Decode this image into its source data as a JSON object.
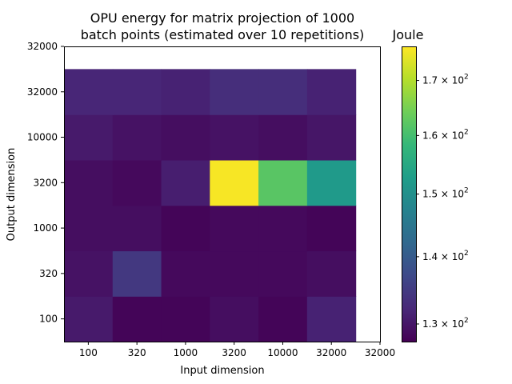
{
  "chart_data": {
    "type": "heatmap",
    "title_lines": [
      "OPU energy for matrix projection of 1000",
      "batch points (estimated over 10 repetitions)"
    ],
    "xlabel": "Input dimension",
    "ylabel": "Output dimension",
    "x_ticks": [
      "100",
      "320",
      "1000",
      "3200",
      "10000",
      "32000",
      "32000"
    ],
    "y_ticks": [
      "100",
      "320",
      "1000",
      "3200",
      "10000",
      "32000",
      "32000"
    ],
    "x_categories": [
      "100",
      "320",
      "1000",
      "3200",
      "10000",
      "32000"
    ],
    "y_categories": [
      "100",
      "320",
      "1000",
      "3200",
      "10000",
      "32000"
    ],
    "values": [
      [
        130.5,
        128.0,
        128.0,
        129.0,
        128.0,
        131.5
      ],
      [
        129.5,
        134.5,
        128.5,
        128.5,
        128.5,
        129.0
      ],
      [
        129.0,
        129.0,
        128.0,
        128.5,
        128.5,
        128.0
      ],
      [
        129.0,
        128.5,
        131.0,
        176.0,
        162.0,
        152.0
      ],
      [
        130.5,
        129.5,
        129.0,
        129.5,
        129.0,
        130.0
      ],
      [
        132.0,
        132.0,
        131.5,
        133.0,
        133.0,
        131.5
      ]
    ],
    "colorbar": {
      "label": "Joule",
      "scale": "log",
      "vmin": 127.5,
      "vmax": 176.5,
      "ticks": [
        {
          "value": 130,
          "mantissa": "1.3"
        },
        {
          "value": 140,
          "mantissa": "1.4"
        },
        {
          "value": 150,
          "mantissa": "1.5"
        },
        {
          "value": 160,
          "mantissa": "1.6"
        },
        {
          "value": 170,
          "mantissa": "1.7"
        }
      ],
      "tick_base": "10",
      "tick_exponent": "2",
      "tick_times": "×"
    },
    "colormap": "viridis"
  }
}
